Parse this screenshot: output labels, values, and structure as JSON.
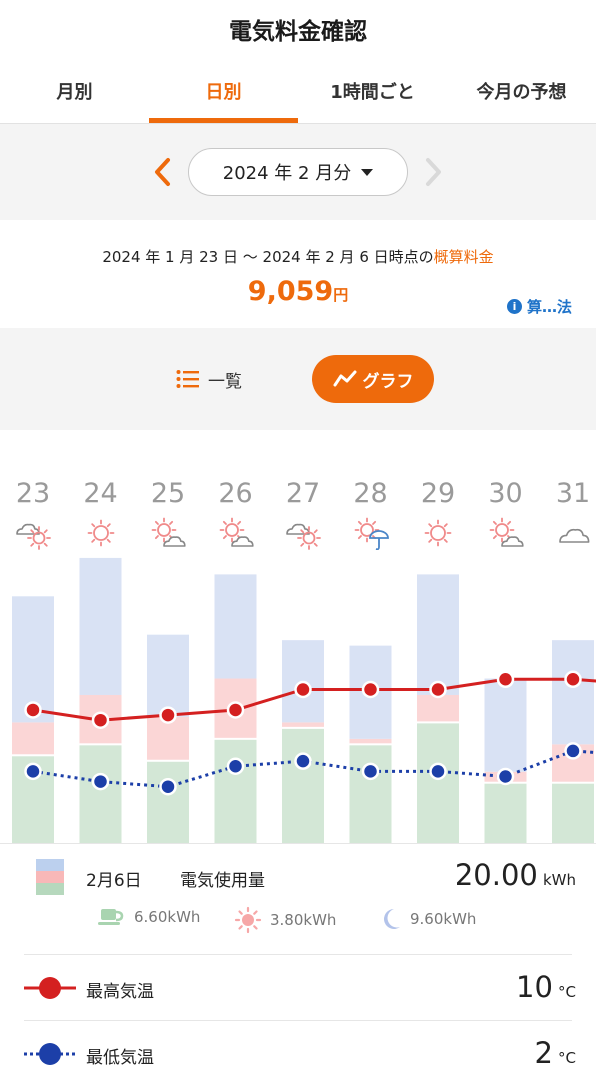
{
  "app": {
    "title": "電気料金確認"
  },
  "tabs": [
    {
      "label": "月別",
      "active": false
    },
    {
      "label": "日別",
      "active": true
    },
    {
      "label": "1時間ごと",
      "active": false
    },
    {
      "label": "今月の予想",
      "active": false
    }
  ],
  "month_selector": {
    "label": "2024 年 2 月分"
  },
  "summary": {
    "period": "2024 年 1 月 23 日 〜 2024 年 2 月 6 日時点の",
    "period_accent": "概算料金",
    "amount": "9,059",
    "amount_unit": "円",
    "calc_link": "算…法"
  },
  "view_toggle": {
    "list_label": "一覧",
    "graph_label": "グラフ",
    "active": "graph"
  },
  "colors": {
    "accent": "#ee6a0c",
    "night": "#d9e2f4",
    "day": "#fbd6d6",
    "home": "#d3e7d6",
    "max_temp": "#d42020",
    "min_temp": "#1c3fa8",
    "link": "#1f73c9"
  },
  "chart_data": {
    "type": "bar",
    "stacked": true,
    "categories": [
      "23",
      "24",
      "25",
      "26",
      "27",
      "28",
      "29",
      "30",
      "31"
    ],
    "weather": [
      "cloudy-sunny",
      "sunny",
      "sunny-cloudy",
      "sunny-cloudy",
      "cloudy-sunny",
      "sunny-rain",
      "sunny",
      "sunny-cloudy",
      "cloudy"
    ],
    "series": [
      {
        "key": "home",
        "values": [
          8.0,
          9.0,
          7.5,
          9.5,
          10.5,
          9.0,
          11.0,
          5.5,
          5.5
        ]
      },
      {
        "key": "day",
        "values": [
          3.0,
          4.5,
          4.0,
          5.5,
          0.5,
          0.5,
          2.5,
          1.0,
          3.5
        ]
      },
      {
        "key": "night",
        "values": [
          11.5,
          12.5,
          7.5,
          9.5,
          7.5,
          8.5,
          11.0,
          8.5,
          9.5
        ]
      }
    ],
    "temp_series": [
      {
        "key": "max",
        "values": [
          7,
          6,
          6.5,
          7,
          9,
          9,
          9,
          10,
          10
        ]
      },
      {
        "key": "min",
        "values": [
          1,
          0,
          -0.5,
          1.5,
          2,
          1,
          1,
          0.5,
          3
        ]
      }
    ],
    "ylim_usage": [
      0,
      28
    ],
    "ylim_temp": [
      -6,
      24
    ]
  },
  "detail": {
    "date": "2月6日",
    "usage_label": "電気使用量",
    "usage_total": "20.00",
    "usage_unit": "kWh",
    "breakdown": [
      {
        "icon": "home-cup-icon",
        "value": "6.60kWh"
      },
      {
        "icon": "sun-icon",
        "value": "3.80kWh"
      },
      {
        "icon": "moon-icon",
        "value": "9.60kWh"
      }
    ],
    "max_temp_label": "最高気温",
    "max_temp_value": "10",
    "min_temp_label": "最低気温",
    "min_temp_value": "2",
    "temp_unit": "°C"
  }
}
